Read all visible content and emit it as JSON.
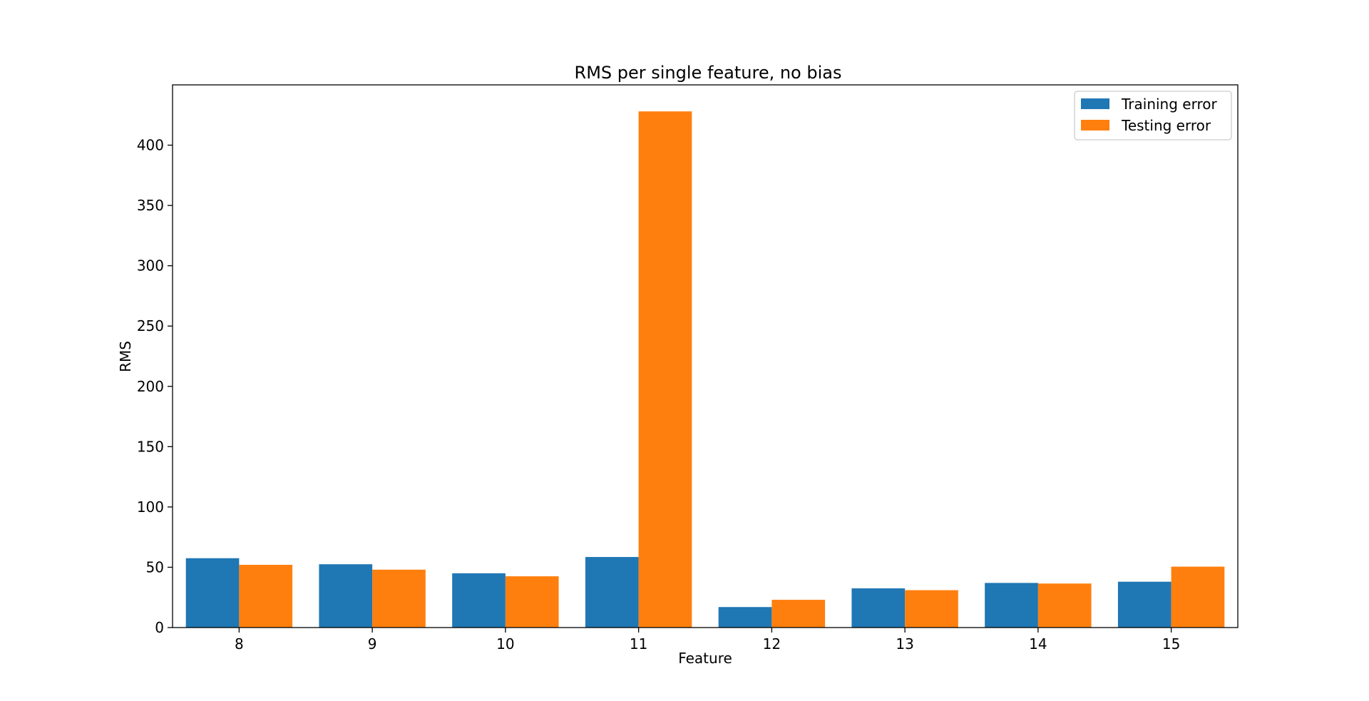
{
  "chart_data": {
    "type": "bar",
    "title": "RMS per single feature, no bias",
    "xlabel": "Feature",
    "ylabel": "RMS",
    "categories": [
      "8",
      "9",
      "10",
      "11",
      "12",
      "13",
      "14",
      "15"
    ],
    "series": [
      {
        "name": "Training error",
        "color": "#1f77b4",
        "values": [
          57.5,
          52.5,
          45.0,
          58.5,
          17.0,
          32.5,
          37.0,
          38.0
        ]
      },
      {
        "name": "Testing error",
        "color": "#ff7f0e",
        "values": [
          52.0,
          48.0,
          42.5,
          428.0,
          23.0,
          31.0,
          36.5,
          50.5
        ]
      }
    ],
    "ylim": [
      0,
      450
    ],
    "yticks": [
      0,
      50,
      100,
      150,
      200,
      250,
      300,
      350,
      400
    ],
    "grid": false,
    "legend": "top-right"
  }
}
